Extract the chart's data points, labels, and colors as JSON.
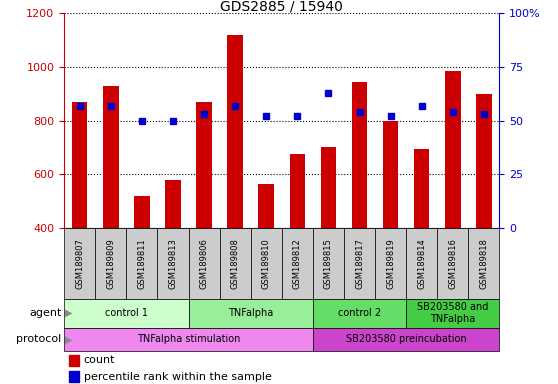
{
  "title": "GDS2885 / 15940",
  "samples": [
    "GSM189807",
    "GSM189809",
    "GSM189811",
    "GSM189813",
    "GSM189806",
    "GSM189808",
    "GSM189810",
    "GSM189812",
    "GSM189815",
    "GSM189817",
    "GSM189819",
    "GSM189814",
    "GSM189816",
    "GSM189818"
  ],
  "counts": [
    870,
    930,
    520,
    580,
    870,
    1120,
    565,
    675,
    700,
    945,
    800,
    695,
    985,
    900
  ],
  "percentile": [
    57,
    57,
    50,
    50,
    53,
    57,
    52,
    52,
    63,
    54,
    52,
    57,
    54,
    53
  ],
  "ylim_left": [
    400,
    1200
  ],
  "ylim_right": [
    0,
    100
  ],
  "yticks_left": [
    400,
    600,
    800,
    1000,
    1200
  ],
  "yticks_right": [
    0,
    25,
    50,
    75,
    100
  ],
  "bar_color": "#cc0000",
  "dot_color": "#0000cc",
  "agent_groups": [
    {
      "label": "control 1",
      "start": 0,
      "end": 4,
      "color": "#ccffcc"
    },
    {
      "label": "TNFalpha",
      "start": 4,
      "end": 8,
      "color": "#99ee99"
    },
    {
      "label": "control 2",
      "start": 8,
      "end": 11,
      "color": "#66dd66"
    },
    {
      "label": "SB203580 and\nTNFalpha",
      "start": 11,
      "end": 14,
      "color": "#44cc44"
    }
  ],
  "protocol_groups": [
    {
      "label": "TNFalpha stimulation",
      "start": 0,
      "end": 8,
      "color": "#ee88ee"
    },
    {
      "label": "SB203580 preincubation",
      "start": 8,
      "end": 14,
      "color": "#cc44cc"
    }
  ],
  "bar_width": 0.5,
  "bar_color_hex": "#cc0000",
  "dot_color_hex": "#0000cc",
  "sample_bg_color": "#cccccc",
  "label_fontsize": 6,
  "tick_fontsize": 8,
  "title_fontsize": 10,
  "annotation_fontsize": 7,
  "legend_fontsize": 8
}
